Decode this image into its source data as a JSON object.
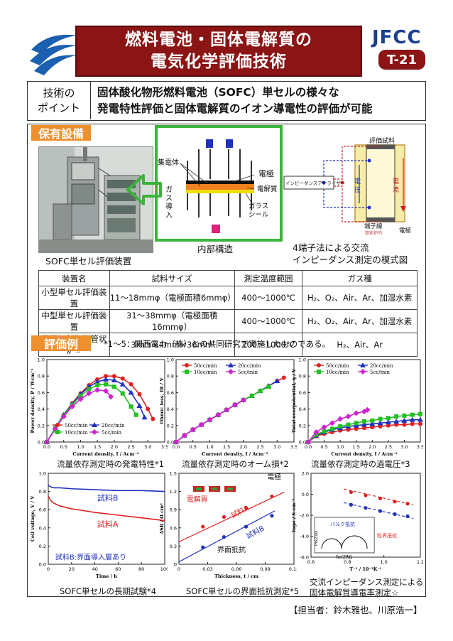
{
  "header": {
    "title_line1": "燃料電池・固体電解質の",
    "title_line2": "電気化学評価技術",
    "org": "JFCC",
    "code": "T-21",
    "colors": {
      "title_bg": "#8b1414",
      "org": "#1b3f8f",
      "section": "#ef8f2d"
    }
  },
  "point": {
    "label_line1": "技術の",
    "label_line2": "ポイント",
    "text_line1": "固体酸化物形燃料電池（SOFC）単セルの様々な",
    "text_line2": "発電特性評価と固体電解質のイオン導電性の評価が可能"
  },
  "equipment": {
    "section_label": "保有設備",
    "photo_caption": "SOFC単セル評価装置",
    "internal": {
      "collector": "集電体",
      "electrode": "電極",
      "electrolyte": "電解質",
      "gas_inlet": "ガス導入",
      "glass_seal_1": "ガラス",
      "glass_seal_2": "シール",
      "caption": "内部構造"
    },
    "impedance": {
      "sample": "評価試料",
      "analyzer": "インピーダンスアナライザー",
      "voltage": "電圧",
      "current": "電流",
      "terminal": "端子線",
      "furnace": "管状炉内",
      "electrode": "電極",
      "caption_line1": "4端子法による交流",
      "caption_line2": "インピーダンス測定の模式図"
    }
  },
  "spec_table": {
    "headers": [
      "装置名",
      "試料サイズ",
      "測定温度範囲",
      "ガス種"
    ],
    "rows": [
      [
        "小型単セル評価装置",
        "11～18mmφ（電極面積6mmφ）",
        "400～1000℃",
        "H₂、O₂、Air、Ar、加湿水素"
      ],
      [
        "中型単セル評価装置",
        "31～38mmφ（電極面積16mmφ）",
        "400～1000℃",
        "H₂、O₂、Air、Ar、加湿水素"
      ],
      [
        "雰囲気制御型管状炉☆",
        "3mm×4mm×36mm",
        "200～1000℃",
        "H₂、Air、Ar"
      ]
    ]
  },
  "examples": {
    "section_label": "評価例",
    "note": "*1～5：関西電力（株）との共同研究で実施したものである。",
    "captions": [
      "流量依存測定時の発電特性*1",
      "流量依存測定時のオーム損*2",
      "流量依存測定時の過電圧*3",
      "SOFC単セルの長期試験*4",
      "SOFC単セルの界面抵抗測定*5",
      "交流インピーダンス測定による",
      "固体電解質導電率測定☆"
    ]
  },
  "chart_data": [
    {
      "type": "line",
      "xlabel": "Current density, I / Acm⁻²",
      "ylabel": "Power density, P / Wcm⁻²",
      "xlim": [
        0,
        3.5
      ],
      "ylim": [
        0,
        1.0
      ],
      "xticks": [
        "0.0",
        "0.5",
        "1.0",
        "1.5",
        "2.0",
        "2.5",
        "3.0",
        "3.5"
      ],
      "yticks": [
        "0.0",
        "0.2",
        "0.4",
        "0.6",
        "0.8",
        "1.0"
      ],
      "legend": "bottom-left",
      "series": [
        {
          "name": "50cc/min",
          "color": "#e02020",
          "marker": "circle",
          "x": [
            0,
            0.25,
            0.5,
            0.75,
            1.0,
            1.25,
            1.5,
            1.75,
            2.0,
            2.25,
            2.5,
            2.75,
            3.0,
            3.15
          ],
          "y": [
            0,
            0.17,
            0.33,
            0.47,
            0.59,
            0.69,
            0.76,
            0.8,
            0.8,
            0.77,
            0.7,
            0.58,
            0.4,
            0.28
          ]
        },
        {
          "name": "20cc/min",
          "color": "#2030c0",
          "marker": "triangle",
          "x": [
            0,
            0.25,
            0.5,
            0.75,
            1.0,
            1.25,
            1.5,
            1.75,
            2.0,
            2.25,
            2.5,
            2.75,
            2.9
          ],
          "y": [
            0,
            0.17,
            0.33,
            0.46,
            0.58,
            0.67,
            0.73,
            0.76,
            0.75,
            0.7,
            0.6,
            0.44,
            0.3
          ]
        },
        {
          "name": "10cc/min",
          "color": "#20c020",
          "marker": "square",
          "x": [
            0,
            0.25,
            0.5,
            0.75,
            1.0,
            1.25,
            1.5,
            1.75,
            2.0,
            2.25,
            2.5,
            2.65
          ],
          "y": [
            0,
            0.17,
            0.32,
            0.45,
            0.56,
            0.64,
            0.69,
            0.7,
            0.67,
            0.59,
            0.43,
            0.33
          ]
        },
        {
          "name": "5cc/min",
          "color": "#d020d0",
          "marker": "diamond",
          "x": [
            0,
            0.25,
            0.5,
            0.75,
            1.0,
            1.25,
            1.5,
            1.75,
            1.9
          ],
          "y": [
            0,
            0.16,
            0.31,
            0.43,
            0.52,
            0.59,
            0.63,
            0.62,
            0.55
          ]
        }
      ]
    },
    {
      "type": "line",
      "xlabel": "Current density, I / Acm⁻²",
      "ylabel": "Ohmic loss, IR / V",
      "xlim": [
        0,
        3.5
      ],
      "ylim": [
        0,
        1.0
      ],
      "xticks": [
        "0.0",
        "0.5",
        "1.0",
        "1.5",
        "2.0",
        "2.5",
        "3.0",
        "3.5"
      ],
      "yticks": [
        "0.0",
        "0.2",
        "0.4",
        "0.6",
        "0.8",
        "1.0"
      ],
      "legend": "top",
      "series": [
        {
          "name": "50cc/min",
          "color": "#e02020",
          "marker": "circle",
          "x": [
            0,
            0.25,
            0.5,
            0.75,
            1.0,
            1.25,
            1.5,
            1.75,
            2.0,
            2.25,
            2.5,
            2.75,
            3.0,
            3.2
          ],
          "y": [
            0,
            0.08,
            0.15,
            0.21,
            0.27,
            0.33,
            0.39,
            0.45,
            0.51,
            0.56,
            0.62,
            0.68,
            0.74,
            0.78
          ]
        },
        {
          "name": "20cc/min",
          "color": "#2030c0",
          "marker": "triangle",
          "x": [
            0,
            0.25,
            0.5,
            0.75,
            1.0,
            1.25,
            1.5,
            1.75,
            2.0,
            2.25,
            2.5,
            2.75,
            3.0
          ],
          "y": [
            0,
            0.08,
            0.15,
            0.21,
            0.27,
            0.33,
            0.39,
            0.45,
            0.51,
            0.56,
            0.62,
            0.68,
            0.74
          ]
        },
        {
          "name": "10cc/min",
          "color": "#20c020",
          "marker": "square",
          "x": [
            0,
            0.25,
            0.5,
            0.75,
            1.0,
            1.25,
            1.5,
            1.75,
            2.0,
            2.25,
            2.5,
            2.75
          ],
          "y": [
            0,
            0.08,
            0.15,
            0.21,
            0.27,
            0.33,
            0.39,
            0.45,
            0.51,
            0.56,
            0.62,
            0.67
          ]
        },
        {
          "name": "5cc/min",
          "color": "#d020d0",
          "marker": "diamond",
          "x": [
            0,
            0.25,
            0.5,
            0.75,
            1.0,
            1.25,
            1.5,
            1.75,
            2.0
          ],
          "y": [
            0,
            0.08,
            0.15,
            0.21,
            0.27,
            0.33,
            0.39,
            0.45,
            0.51
          ]
        }
      ]
    },
    {
      "type": "line",
      "xlabel": "Current density, I / Acm⁻²",
      "ylabel": "Total overpotential, η / V",
      "xlim": [
        0,
        3.5
      ],
      "ylim": [
        0,
        1.0
      ],
      "xticks": [
        "0.0",
        "0.5",
        "1.0",
        "1.5",
        "2.0",
        "2.5",
        "3.0",
        "3.5"
      ],
      "yticks": [
        "0.0",
        "0.2",
        "0.4",
        "0.6",
        "0.8",
        "1.0"
      ],
      "legend": "top",
      "series": [
        {
          "name": "50cc/min",
          "color": "#e02020",
          "marker": "circle",
          "x": [
            0,
            0.25,
            0.5,
            0.75,
            1.0,
            1.25,
            1.5,
            1.75,
            2.0,
            2.25,
            2.5,
            2.75,
            3.0,
            3.25,
            3.5
          ],
          "y": [
            0,
            0.07,
            0.1,
            0.12,
            0.14,
            0.15,
            0.16,
            0.17,
            0.18,
            0.19,
            0.2,
            0.21,
            0.21,
            0.22,
            0.22
          ]
        },
        {
          "name": "20cc/min",
          "color": "#2030c0",
          "marker": "triangle",
          "x": [
            0,
            0.25,
            0.5,
            0.75,
            1.0,
            1.25,
            1.5,
            1.75,
            2.0,
            2.25,
            2.5,
            2.75,
            3.0,
            3.25,
            3.5
          ],
          "y": [
            0,
            0.08,
            0.12,
            0.15,
            0.17,
            0.19,
            0.2,
            0.21,
            0.22,
            0.23,
            0.24,
            0.25,
            0.26,
            0.27,
            0.27
          ]
        },
        {
          "name": "10cc/min",
          "color": "#20c020",
          "marker": "square",
          "x": [
            0,
            0.25,
            0.5,
            0.75,
            1.0,
            1.25,
            1.5,
            1.75,
            2.0,
            2.25,
            2.5,
            2.75,
            3.0,
            3.25,
            3.5
          ],
          "y": [
            0,
            0.09,
            0.13,
            0.16,
            0.19,
            0.21,
            0.23,
            0.25,
            0.26,
            0.28,
            0.29,
            0.31,
            0.32,
            0.33,
            0.34
          ]
        },
        {
          "name": "5cc/min",
          "color": "#d020d0",
          "marker": "diamond",
          "x": [
            0,
            0.25,
            0.5,
            0.75,
            1.0,
            1.25,
            1.5,
            1.75,
            1.85
          ],
          "y": [
            0,
            0.12,
            0.18,
            0.23,
            0.28,
            0.31,
            0.35,
            0.37,
            0.39
          ]
        }
      ]
    },
    {
      "type": "line",
      "xlabel": "Time / h",
      "ylabel": "Cell voltage, V / V",
      "xlim": [
        0,
        100
      ],
      "ylim": [
        0,
        1.0
      ],
      "xticks": [
        "0",
        "20",
        "40",
        "60",
        "80",
        "100"
      ],
      "yticks": [
        "0.0",
        "0.2",
        "0.4",
        "0.6",
        "0.8",
        "1.0"
      ],
      "annotations": [
        "試料B",
        "試料A",
        "試料B:界面導入層あり"
      ],
      "series": [
        {
          "name": "試料B",
          "color": "#2030c0",
          "x": [
            0,
            2,
            5,
            10,
            20,
            40,
            60,
            80,
            100
          ],
          "y": [
            0.87,
            0.85,
            0.84,
            0.84,
            0.83,
            0.82,
            0.81,
            0.81,
            0.8
          ]
        },
        {
          "name": "試料A",
          "color": "#e02020",
          "x": [
            0,
            2,
            5,
            10,
            20,
            30,
            40,
            60,
            80,
            100
          ],
          "y": [
            0.75,
            0.7,
            0.67,
            0.64,
            0.61,
            0.59,
            0.57,
            0.54,
            0.51,
            0.48
          ]
        }
      ]
    },
    {
      "type": "scatter",
      "xlabel": "Thickness, t / cm",
      "ylabel": "ASR / Ω cm²",
      "xlim": [
        0,
        0.12
      ],
      "ylim": [
        0,
        1.5
      ],
      "xticks": [
        "0",
        "0.03",
        "0.06",
        "0.09",
        "0.12"
      ],
      "yticks": [
        "0",
        "0.3",
        "0.6",
        "0.9",
        "1.2",
        "1.5"
      ],
      "annotations": [
        "電極",
        "電解質",
        "試料A",
        "試料B",
        "界面抵抗"
      ],
      "series": [
        {
          "name": "試料A",
          "color": "#e02020",
          "x": [
            0.025,
            0.047,
            0.07,
            0.097
          ],
          "y": [
            0.62,
            0.78,
            0.93,
            1.12
          ]
        },
        {
          "name": "試料B",
          "color": "#2030c0",
          "x": [
            0.025,
            0.047,
            0.07,
            0.097
          ],
          "y": [
            0.28,
            0.45,
            0.62,
            0.8
          ]
        }
      ]
    },
    {
      "type": "scatter",
      "xlabel": "T⁻¹ / 10⁻³K⁻¹",
      "ylabel": "logσ / S cm⁻¹",
      "xlim": [
        0.6,
        1.2
      ],
      "ylim": [
        -6.0,
        2.0
      ],
      "xticks": [
        "0.6",
        "0.8",
        "1.0",
        "1.2"
      ],
      "yticks": [
        "2.0",
        "0.0",
        "-2.0",
        "-4.0",
        "-6.0"
      ],
      "annotations": [
        "バルク抵抗",
        "粒界抵抗",
        "Im(Z)/Ω",
        "Re(Z)/Ω"
      ],
      "series": [
        {
          "name": "粒界抵抗",
          "color": "#e02020",
          "x": [
            0.82,
            0.9,
            0.98,
            1.06,
            1.13
          ],
          "y": [
            0.2,
            -0.1,
            -0.4,
            -0.7,
            -0.9
          ]
        },
        {
          "name": "バルク抵抗",
          "color": "#2030c0",
          "x": [
            0.82,
            0.9,
            0.98,
            1.06,
            1.13
          ],
          "y": [
            -1.0,
            -1.3,
            -1.6,
            -1.9,
            -2.1
          ]
        }
      ]
    }
  ],
  "footer": {
    "text": "【担当者：鈴木雅也、川原浩一】"
  }
}
